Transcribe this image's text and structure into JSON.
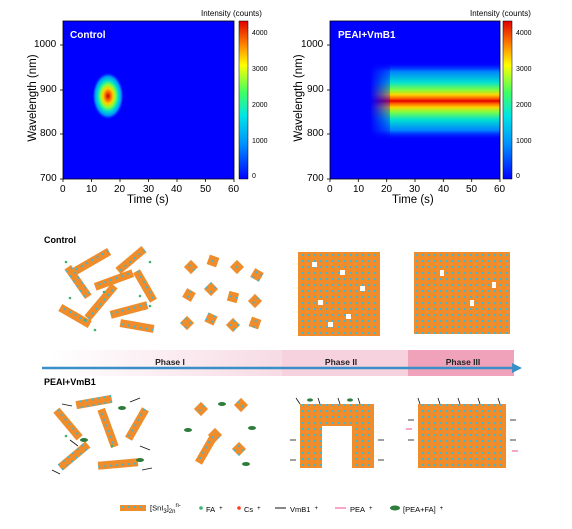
{
  "plots": [
    {
      "tag": "Control",
      "ylabel": "Wavelength (nm)",
      "xlabel": "Time (s)",
      "colorbar_title": "Intensity (counts)",
      "x_ticks": [
        "0",
        "10",
        "20",
        "30",
        "40",
        "50",
        "60"
      ],
      "y_ticks": [
        "1000",
        "900",
        "800",
        "700"
      ],
      "cb_ticks": [
        "4000",
        "3000",
        "2000",
        "1000",
        "0"
      ]
    },
    {
      "tag": "PEAI+VmB1",
      "ylabel": "Wavelength (nm)",
      "xlabel": "Time (s)",
      "colorbar_title": "Intensity (counts)",
      "x_ticks": [
        "0",
        "10",
        "20",
        "30",
        "40",
        "50",
        "60"
      ],
      "y_ticks": [
        "1000",
        "900",
        "800",
        "700"
      ],
      "cb_ticks": [
        "4000",
        "3000",
        "2000",
        "1000",
        "0"
      ]
    }
  ],
  "groups": {
    "control": "Control",
    "treated": "PEAI+VmB1"
  },
  "phases": [
    "Phase I",
    "Phase II",
    "Phase III"
  ],
  "legend": {
    "sni3": "[SnI",
    "sni3_sub": "3",
    "sni3_tail": "]",
    "sni3_sup": "n-",
    "sni3_sub2": "2n",
    "fa": "FA",
    "cs": "Cs",
    "vmb1": "VmB1",
    "pea": "PEA",
    "peafa": "[PEA+FA]",
    "plus": "+"
  },
  "colors": {
    "octahedron": "#f08c2a",
    "octa_center": "#3fb7d6",
    "fa": "#3cb371",
    "cs": "#ff3b1f",
    "vmb1": "#111111",
    "pea": "#f4a7c8",
    "peafa": "#2f7d3c",
    "phase1": "#fbeaf0",
    "phase2": "#f7d3df",
    "phase3": "#f0a3bb",
    "arrow": "#3a8fc6"
  }
}
